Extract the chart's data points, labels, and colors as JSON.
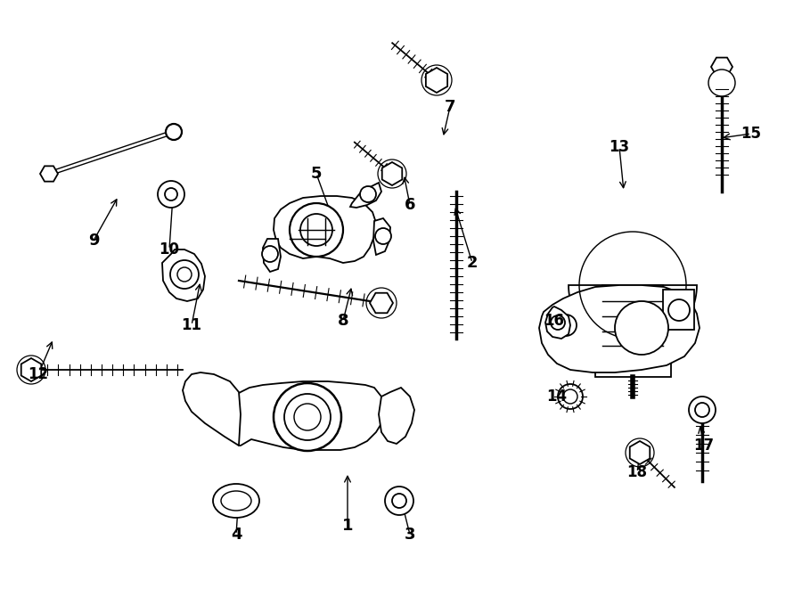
{
  "bg_color": "#ffffff",
  "lc": "#000000",
  "lw": 1.3,
  "fig_w": 9.0,
  "fig_h": 6.61,
  "labels": [
    [
      "1",
      390,
      590,
      390,
      530
    ],
    [
      "2",
      530,
      295,
      510,
      230
    ],
    [
      "3",
      460,
      600,
      450,
      560
    ],
    [
      "4",
      265,
      600,
      268,
      555
    ],
    [
      "5",
      355,
      195,
      375,
      250
    ],
    [
      "6",
      460,
      230,
      453,
      195
    ],
    [
      "7",
      505,
      120,
      497,
      155
    ],
    [
      "8",
      385,
      360,
      395,
      320
    ],
    [
      "9",
      105,
      270,
      133,
      220
    ],
    [
      "10",
      190,
      280,
      194,
      220
    ],
    [
      "11",
      215,
      365,
      225,
      315
    ],
    [
      "12",
      43,
      420,
      60,
      380
    ],
    [
      "13",
      695,
      165,
      700,
      215
    ],
    [
      "14",
      625,
      445,
      640,
      430
    ],
    [
      "15",
      843,
      150,
      808,
      155
    ],
    [
      "16",
      622,
      360,
      648,
      368
    ],
    [
      "17",
      790,
      500,
      785,
      475
    ],
    [
      "18",
      715,
      530,
      720,
      495
    ]
  ]
}
